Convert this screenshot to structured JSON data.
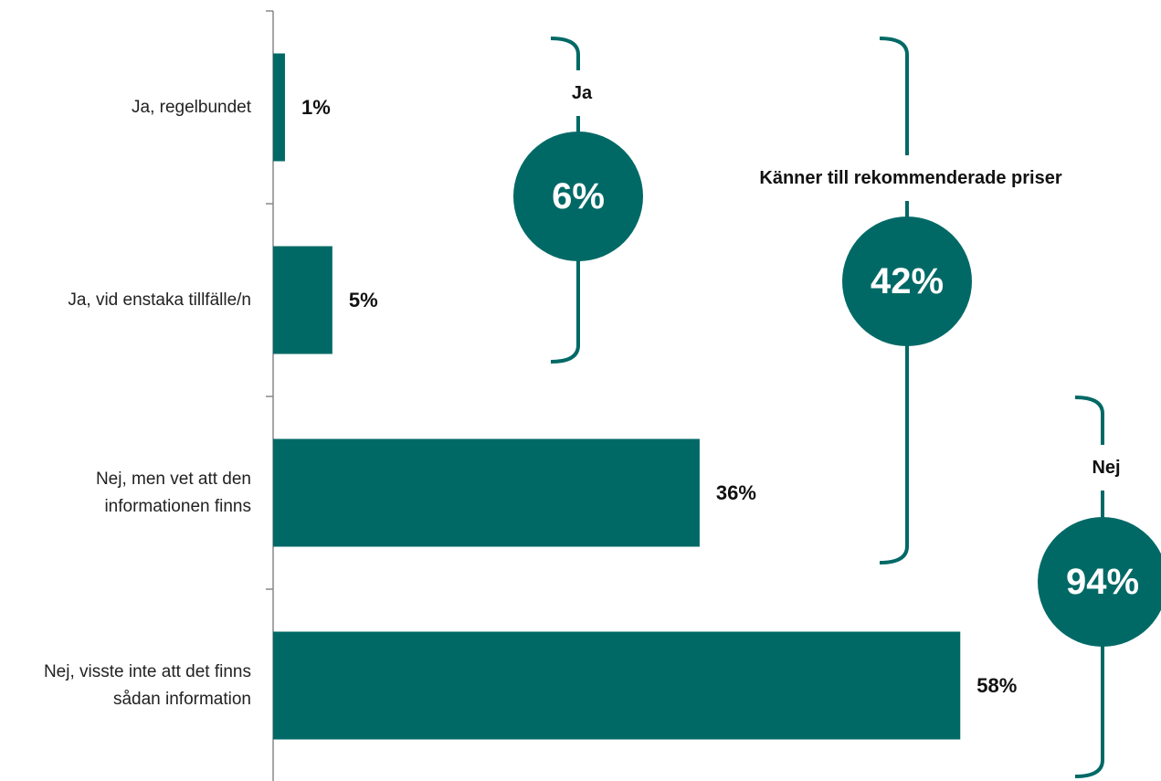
{
  "chart_data": {
    "type": "bar",
    "orientation": "horizontal",
    "categories": [
      "Ja, regelbundet",
      "Ja, vid enstaka tillfälle/n",
      "Nej, men vet att den informationen finns",
      "Nej, visste inte att det finns sådan information"
    ],
    "values": [
      1,
      5,
      36,
      58
    ],
    "value_labels": [
      "1%",
      "5%",
      "36%",
      "58%"
    ],
    "color": "#006966",
    "annotations": [
      {
        "label": "Ja",
        "value": 6,
        "value_label": "6%"
      },
      {
        "label": "Känner till rekommenderade priser",
        "value": 42,
        "value_label": "42%"
      },
      {
        "label": "Nej",
        "value": 94,
        "value_label": "94%"
      }
    ]
  }
}
